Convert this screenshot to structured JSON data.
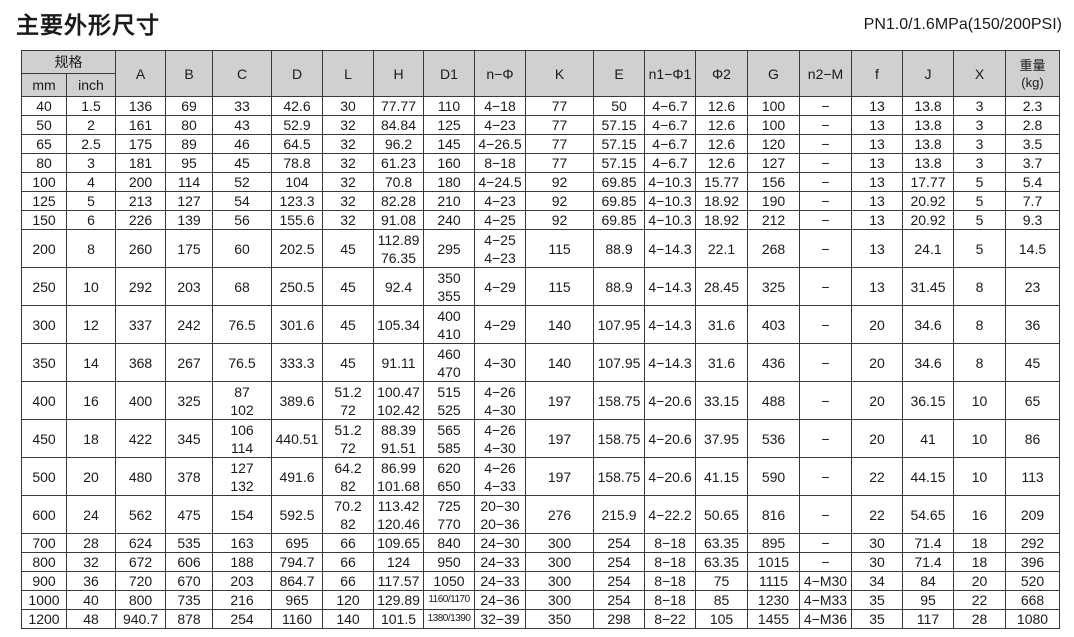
{
  "title": "主要外形尺寸",
  "subtitle": "PN1.0/1.6MPa(150/200PSI)",
  "table": {
    "spec_header": "规格",
    "spec_sub": [
      "mm",
      "inch"
    ],
    "columns": [
      "A",
      "B",
      "C",
      "D",
      "L",
      "H",
      "D1",
      "n−Φ",
      "K",
      "E",
      "n1−Φ1",
      "Φ2",
      "G",
      "n2−M",
      "f",
      "J",
      "X",
      "重量\n(kg)"
    ],
    "rows": [
      [
        "40",
        "1.5",
        "136",
        "69",
        "33",
        "42.6",
        "30",
        "77.77",
        "110",
        "4−18",
        "77",
        "50",
        "4−6.7",
        "12.6",
        "100",
        "−",
        "13",
        "13.8",
        "3",
        "2.3"
      ],
      [
        "50",
        "2",
        "161",
        "80",
        "43",
        "52.9",
        "32",
        "84.84",
        "125",
        "4−23",
        "77",
        "57.15",
        "4−6.7",
        "12.6",
        "100",
        "−",
        "13",
        "13.8",
        "3",
        "2.8"
      ],
      [
        "65",
        "2.5",
        "175",
        "89",
        "46",
        "64.5",
        "32",
        "96.2",
        "145",
        "4−26.5",
        "77",
        "57.15",
        "4−6.7",
        "12.6",
        "120",
        "−",
        "13",
        "13.8",
        "3",
        "3.5"
      ],
      [
        "80",
        "3",
        "181",
        "95",
        "45",
        "78.8",
        "32",
        "61.23",
        "160",
        "8−18",
        "77",
        "57.15",
        "4−6.7",
        "12.6",
        "127",
        "−",
        "13",
        "13.8",
        "3",
        "3.7"
      ],
      [
        "100",
        "4",
        "200",
        "114",
        "52",
        "104",
        "32",
        "70.8",
        "180",
        "4−24.5",
        "92",
        "69.85",
        "4−10.3",
        "15.77",
        "156",
        "−",
        "13",
        "17.77",
        "5",
        "5.4"
      ],
      [
        "125",
        "5",
        "213",
        "127",
        "54",
        "123.3",
        "32",
        "82.28",
        "210",
        "4−23",
        "92",
        "69.85",
        "4−10.3",
        "18.92",
        "190",
        "−",
        "13",
        "20.92",
        "5",
        "7.7"
      ],
      [
        "150",
        "6",
        "226",
        "139",
        "56",
        "155.6",
        "32",
        "91.08",
        "240",
        "4−25",
        "92",
        "69.85",
        "4−10.3",
        "18.92",
        "212",
        "−",
        "13",
        "20.92",
        "5",
        "9.3"
      ],
      [
        "200",
        "8",
        "260",
        "175",
        "60",
        "202.5",
        "45",
        "112.89\n76.35",
        "295",
        "4−25\n4−23",
        "115",
        "88.9",
        "4−14.3",
        "22.1",
        "268",
        "−",
        "13",
        "24.1",
        "5",
        "14.5"
      ],
      [
        "250",
        "10",
        "292",
        "203",
        "68",
        "250.5",
        "45",
        "92.4",
        "350\n355",
        "4−29",
        "115",
        "88.9",
        "4−14.3",
        "28.45",
        "325",
        "−",
        "13",
        "31.45",
        "8",
        "23"
      ],
      [
        "300",
        "12",
        "337",
        "242",
        "76.5",
        "301.6",
        "45",
        "105.34",
        "400\n410",
        "4−29",
        "140",
        "107.95",
        "4−14.3",
        "31.6",
        "403",
        "−",
        "20",
        "34.6",
        "8",
        "36"
      ],
      [
        "350",
        "14",
        "368",
        "267",
        "76.5",
        "333.3",
        "45",
        "91.11",
        "460\n470",
        "4−30",
        "140",
        "107.95",
        "4−14.3",
        "31.6",
        "436",
        "−",
        "20",
        "34.6",
        "8",
        "45"
      ],
      [
        "400",
        "16",
        "400",
        "325",
        "87\n102",
        "389.6",
        "51.2\n72",
        "100.47\n102.42",
        "515\n525",
        "4−26\n4−30",
        "197",
        "158.75",
        "4−20.6",
        "33.15",
        "488",
        "−",
        "20",
        "36.15",
        "10",
        "65"
      ],
      [
        "450",
        "18",
        "422",
        "345",
        "106\n114",
        "440.51",
        "51.2\n72",
        "88.39\n91.51",
        "565\n585",
        "4−26\n4−30",
        "197",
        "158.75",
        "4−20.6",
        "37.95",
        "536",
        "−",
        "20",
        "41",
        "10",
        "86"
      ],
      [
        "500",
        "20",
        "480",
        "378",
        "127\n132",
        "491.6",
        "64.2\n82",
        "86.99\n101.68",
        "620\n650",
        "4−26\n4−33",
        "197",
        "158.75",
        "4−20.6",
        "41.15",
        "590",
        "−",
        "22",
        "44.15",
        "10",
        "113"
      ],
      [
        "600",
        "24",
        "562",
        "475",
        "154",
        "592.5",
        "70.2\n82",
        "113.42\n120.46",
        "725\n770",
        "20−30\n20−36",
        "276",
        "215.9",
        "4−22.2",
        "50.65",
        "816",
        "−",
        "22",
        "54.65",
        "16",
        "209"
      ],
      [
        "700",
        "28",
        "624",
        "535",
        "163",
        "695",
        "66",
        "109.65",
        "840",
        "24−30",
        "300",
        "254",
        "8−18",
        "63.35",
        "895",
        "−",
        "30",
        "71.4",
        "18",
        "292"
      ],
      [
        "800",
        "32",
        "672",
        "606",
        "188",
        "794.7",
        "66",
        "124",
        "950",
        "24−33",
        "300",
        "254",
        "8−18",
        "63.35",
        "1015",
        "−",
        "30",
        "71.4",
        "18",
        "396"
      ],
      [
        "900",
        "36",
        "720",
        "670",
        "203",
        "864.7",
        "66",
        "117.57",
        "1050",
        "24−33",
        "300",
        "254",
        "8−18",
        "75",
        "1115",
        "4−M30",
        "34",
        "84",
        "20",
        "520"
      ],
      [
        "1000",
        "40",
        "800",
        "735",
        "216",
        "965",
        "120",
        "129.89",
        "1160/1170",
        "24−36",
        "300",
        "254",
        "8−18",
        "85",
        "1230",
        "4−M33",
        "35",
        "95",
        "22",
        "668"
      ],
      [
        "1200",
        "48",
        "940.7",
        "878",
        "254",
        "1160",
        "140",
        "101.5",
        "1380/1390",
        "32−39",
        "350",
        "298",
        "8−22",
        "105",
        "1455",
        "4−M36",
        "35",
        "117",
        "28",
        "1080"
      ]
    ]
  }
}
